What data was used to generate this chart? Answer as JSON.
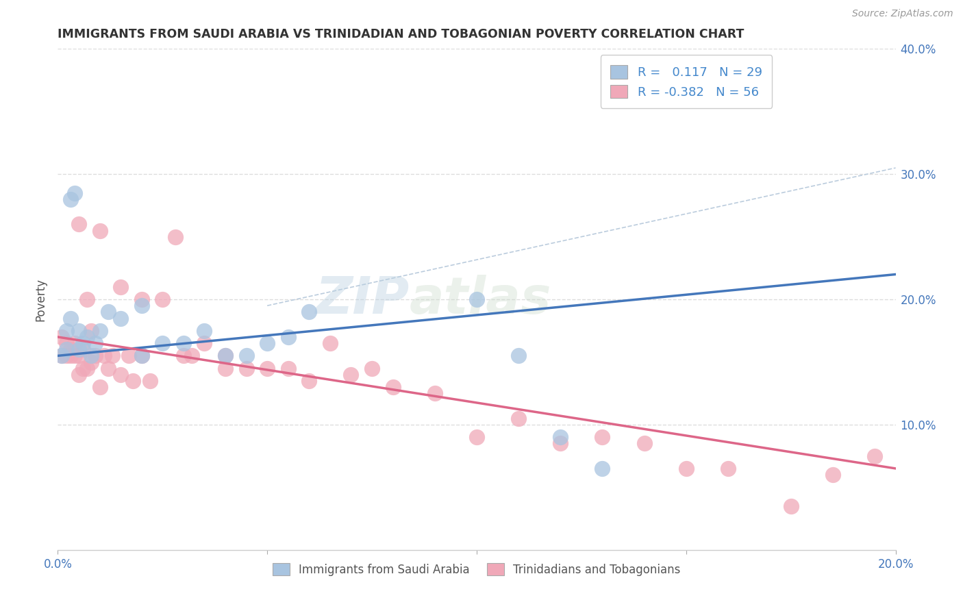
{
  "title": "IMMIGRANTS FROM SAUDI ARABIA VS TRINIDADIAN AND TOBAGONIAN POVERTY CORRELATION CHART",
  "source": "Source: ZipAtlas.com",
  "ylabel": "Poverty",
  "xlim": [
    0.0,
    0.2
  ],
  "ylim": [
    0.0,
    0.4
  ],
  "xticks": [
    0.0,
    0.05,
    0.1,
    0.15,
    0.2
  ],
  "yticks": [
    0.1,
    0.2,
    0.3,
    0.4
  ],
  "xticklabels": [
    "0.0%",
    "",
    "",
    "",
    "20.0%"
  ],
  "bottom_xticklabels": [
    "0.0%",
    "20.0%"
  ],
  "right_yticklabels": [
    "10.0%",
    "20.0%",
    "30.0%",
    "40.0%"
  ],
  "blue_r": "0.117",
  "blue_n": "29",
  "pink_r": "-0.382",
  "pink_n": "56",
  "blue_color": "#a8c4e0",
  "pink_color": "#f0a8b8",
  "blue_line_color": "#4477bb",
  "pink_line_color": "#dd6688",
  "legend_label_blue": "Immigrants from Saudi Arabia",
  "legend_label_pink": "Trinidadians and Tobagonians",
  "blue_line_x0": 0.0,
  "blue_line_y0": 0.155,
  "blue_line_x1": 0.2,
  "blue_line_y1": 0.22,
  "pink_line_x0": 0.0,
  "pink_line_y0": 0.17,
  "pink_line_x1": 0.2,
  "pink_line_y1": 0.065,
  "dashed_line_x0": 0.05,
  "dashed_line_y0": 0.195,
  "dashed_line_x1": 0.2,
  "dashed_line_y1": 0.305,
  "blue_scatter_x": [
    0.001,
    0.002,
    0.002,
    0.003,
    0.003,
    0.004,
    0.005,
    0.005,
    0.006,
    0.007,
    0.008,
    0.009,
    0.01,
    0.012,
    0.015,
    0.02,
    0.02,
    0.025,
    0.03,
    0.035,
    0.04,
    0.045,
    0.05,
    0.055,
    0.06,
    0.1,
    0.11,
    0.12,
    0.13
  ],
  "blue_scatter_y": [
    0.155,
    0.16,
    0.175,
    0.185,
    0.28,
    0.285,
    0.175,
    0.16,
    0.165,
    0.17,
    0.155,
    0.165,
    0.175,
    0.19,
    0.185,
    0.195,
    0.155,
    0.165,
    0.165,
    0.175,
    0.155,
    0.155,
    0.165,
    0.17,
    0.19,
    0.2,
    0.155,
    0.09,
    0.065
  ],
  "pink_scatter_x": [
    0.001,
    0.001,
    0.002,
    0.002,
    0.003,
    0.003,
    0.004,
    0.004,
    0.005,
    0.005,
    0.005,
    0.006,
    0.006,
    0.007,
    0.007,
    0.008,
    0.008,
    0.009,
    0.01,
    0.01,
    0.011,
    0.012,
    0.013,
    0.015,
    0.015,
    0.017,
    0.018,
    0.02,
    0.02,
    0.022,
    0.025,
    0.028,
    0.03,
    0.032,
    0.035,
    0.04,
    0.04,
    0.045,
    0.05,
    0.055,
    0.06,
    0.065,
    0.07,
    0.075,
    0.08,
    0.09,
    0.1,
    0.11,
    0.12,
    0.13,
    0.14,
    0.15,
    0.16,
    0.175,
    0.185,
    0.195
  ],
  "pink_scatter_y": [
    0.155,
    0.17,
    0.155,
    0.165,
    0.155,
    0.16,
    0.155,
    0.165,
    0.14,
    0.155,
    0.26,
    0.145,
    0.16,
    0.145,
    0.2,
    0.15,
    0.175,
    0.155,
    0.13,
    0.255,
    0.155,
    0.145,
    0.155,
    0.14,
    0.21,
    0.155,
    0.135,
    0.155,
    0.2,
    0.135,
    0.2,
    0.25,
    0.155,
    0.155,
    0.165,
    0.145,
    0.155,
    0.145,
    0.145,
    0.145,
    0.135,
    0.165,
    0.14,
    0.145,
    0.13,
    0.125,
    0.09,
    0.105,
    0.085,
    0.09,
    0.085,
    0.065,
    0.065,
    0.035,
    0.06,
    0.075
  ],
  "background_color": "#ffffff",
  "grid_color": "#dddddd"
}
